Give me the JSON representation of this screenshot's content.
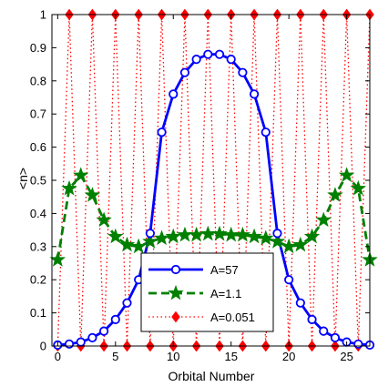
{
  "chart_data": {
    "type": "line",
    "xlabel": "Orbital Number",
    "ylabel": "<n>",
    "xlim": [
      -0.5,
      27
    ],
    "ylim": [
      0,
      1
    ],
    "x_ticks": [
      0,
      5,
      10,
      15,
      20,
      25
    ],
    "x_tick_labels": [
      "0",
      "5",
      "10",
      "15",
      "20",
      "25"
    ],
    "y_ticks": [
      0,
      0.1,
      0.2,
      0.3,
      0.4,
      0.5,
      0.6,
      0.7,
      0.8,
      0.9,
      1
    ],
    "y_tick_labels": [
      "0",
      "0.1",
      "0.2",
      "0.3",
      "0.4",
      "0.5",
      "0.6",
      "0.7",
      "0.8",
      "0.9",
      "1"
    ],
    "grid": false,
    "legend_position": "bottom-center",
    "x": [
      0,
      1,
      2,
      3,
      4,
      5,
      6,
      7,
      8,
      9,
      10,
      11,
      12,
      13,
      14,
      15,
      16,
      17,
      18,
      19,
      20,
      21,
      22,
      23,
      24,
      25,
      26,
      27
    ],
    "series": [
      {
        "name": "A=57",
        "color": "#0000ff",
        "line_style": "solid",
        "marker": "circle",
        "values": [
          0.003,
          0.006,
          0.012,
          0.025,
          0.045,
          0.08,
          0.13,
          0.2,
          0.34,
          0.645,
          0.76,
          0.825,
          0.865,
          0.88,
          0.88,
          0.865,
          0.825,
          0.76,
          0.645,
          0.34,
          0.2,
          0.13,
          0.08,
          0.045,
          0.025,
          0.012,
          0.006,
          0.003
        ]
      },
      {
        "name": "A=1.1",
        "color": "#008000",
        "line_style": "dashed",
        "marker": "star",
        "values": [
          0.26,
          0.475,
          0.515,
          0.455,
          0.38,
          0.33,
          0.305,
          0.3,
          0.315,
          0.325,
          0.33,
          0.335,
          0.335,
          0.338,
          0.338,
          0.335,
          0.335,
          0.33,
          0.325,
          0.315,
          0.3,
          0.305,
          0.33,
          0.38,
          0.455,
          0.515,
          0.475,
          0.26
        ]
      },
      {
        "name": "A=0.051",
        "color": "#ff0000",
        "line_style": "dotted",
        "marker": "diamond",
        "values": [
          0,
          1,
          0,
          1,
          0,
          1,
          0,
          1,
          0,
          1,
          0,
          1,
          0,
          1,
          0,
          1,
          0,
          1,
          0,
          1,
          0,
          1,
          0,
          1,
          0,
          1,
          0,
          1
        ]
      }
    ]
  }
}
